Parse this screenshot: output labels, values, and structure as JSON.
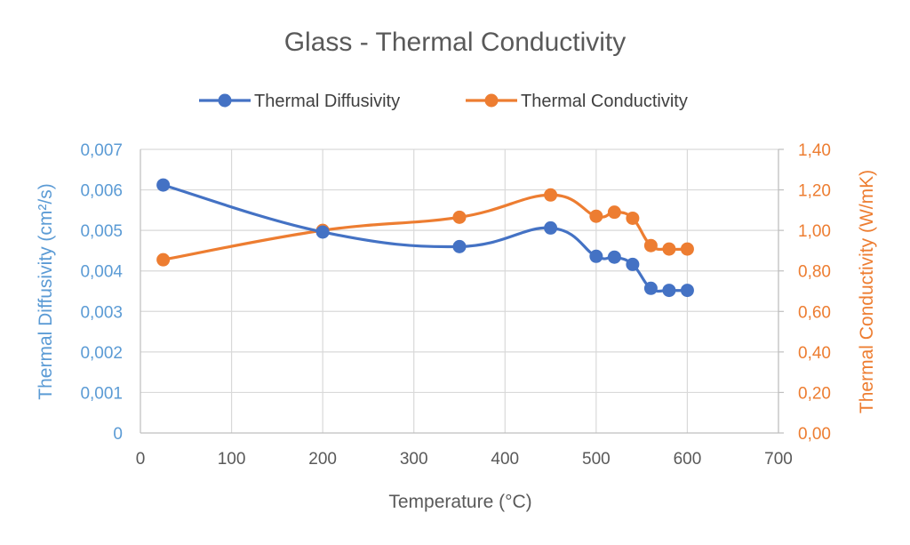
{
  "chart_data": {
    "type": "line",
    "title": "Glass - Thermal Conductivity",
    "xlabel": "Temperature (°C)",
    "ylabel_left": "Thermal Diffusivity (cm²/s)",
    "ylabel_right": "Thermal Conductivity (W/mK)",
    "xlim": [
      0,
      700
    ],
    "xticks": [
      "0",
      "100",
      "200",
      "300",
      "400",
      "500",
      "600",
      "700"
    ],
    "ylim_left": [
      0,
      0.007
    ],
    "yticks_left": [
      "0",
      "0,001",
      "0,002",
      "0,003",
      "0,004",
      "0,005",
      "0,006",
      "0,007"
    ],
    "ylim_right": [
      0,
      1.4
    ],
    "yticks_right": [
      "0,00",
      "0,20",
      "0,40",
      "0,60",
      "0,80",
      "1,00",
      "1,20",
      "1,40"
    ],
    "grid": "vertical-and-horizontal",
    "legend_position": "top",
    "series": [
      {
        "name": "Thermal Diffusivity",
        "axis": "left",
        "color": "#4472C4",
        "x": [
          25,
          200,
          350,
          450,
          500,
          520,
          540,
          560,
          580,
          600
        ],
        "y": [
          0.00612,
          0.00496,
          0.0046,
          0.00506,
          0.00436,
          0.00434,
          0.00416,
          0.00357,
          0.00352,
          0.00352
        ]
      },
      {
        "name": "Thermal Conductivity",
        "axis": "right",
        "color": "#ED7D31",
        "x": [
          25,
          200,
          350,
          450,
          500,
          520,
          540,
          560,
          580,
          600
        ],
        "y": [
          0.855,
          1.0,
          1.065,
          1.175,
          1.07,
          1.09,
          1.06,
          0.925,
          0.908,
          0.908
        ]
      }
    ]
  }
}
